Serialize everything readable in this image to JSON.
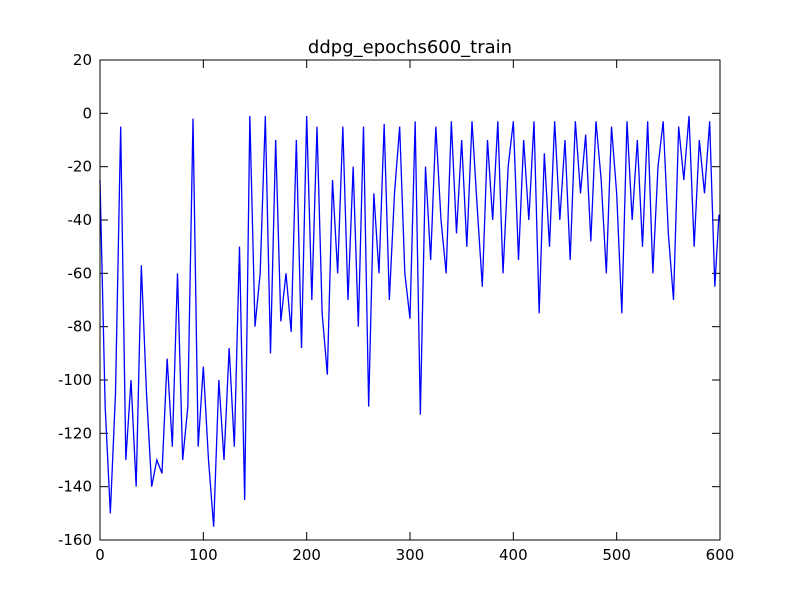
{
  "chart_data": {
    "type": "line",
    "title": "ddpg_epochs600_train",
    "x": [
      0,
      5,
      10,
      15,
      20,
      25,
      30,
      35,
      40,
      45,
      50,
      55,
      60,
      65,
      70,
      75,
      80,
      85,
      90,
      95,
      100,
      105,
      110,
      115,
      120,
      125,
      130,
      135,
      140,
      145,
      150,
      155,
      160,
      165,
      170,
      175,
      180,
      185,
      190,
      195,
      200,
      205,
      210,
      215,
      220,
      225,
      230,
      235,
      240,
      245,
      250,
      255,
      260,
      265,
      270,
      275,
      280,
      285,
      290,
      295,
      300,
      305,
      310,
      315,
      320,
      325,
      330,
      335,
      340,
      345,
      350,
      355,
      360,
      365,
      370,
      375,
      380,
      385,
      390,
      395,
      400,
      405,
      410,
      415,
      420,
      425,
      430,
      435,
      440,
      445,
      450,
      455,
      460,
      465,
      470,
      475,
      480,
      485,
      490,
      495,
      500,
      505,
      510,
      515,
      520,
      525,
      530,
      535,
      540,
      545,
      550,
      555,
      560,
      565,
      570,
      575,
      580,
      585,
      590,
      595,
      599
    ],
    "series": [
      {
        "color": "#0000ff",
        "values": [
          -25,
          -110,
          -150,
          -105,
          -5,
          -130,
          -100,
          -140,
          -57,
          -105,
          -140,
          -130,
          -135,
          -92,
          -125,
          -60,
          -130,
          -110,
          -2,
          -125,
          -95,
          -130,
          -155,
          -100,
          -130,
          -88,
          -125,
          -50,
          -145,
          -1,
          -80,
          -60,
          -1,
          -90,
          -10,
          -78,
          -60,
          -82,
          -10,
          -88,
          -1,
          -70,
          -5,
          -75,
          -98,
          -25,
          -60,
          -5,
          -70,
          -20,
          -80,
          -5,
          -110,
          -30,
          -60,
          -4,
          -70,
          -30,
          -5,
          -60,
          -77,
          -3,
          -113,
          -20,
          -55,
          -5,
          -40,
          -60,
          -3,
          -45,
          -10,
          -50,
          -3,
          -35,
          -65,
          -10,
          -40,
          -3,
          -60,
          -20,
          -3,
          -55,
          -10,
          -40,
          -3,
          -75,
          -15,
          -50,
          -3,
          -40,
          -10,
          -55,
          -3,
          -30,
          -8,
          -48,
          -3,
          -25,
          -60,
          -5,
          -30,
          -75,
          -3,
          -40,
          -10,
          -50,
          -3,
          -60,
          -20,
          -3,
          -45,
          -70,
          -5,
          -25,
          -1,
          -50,
          -10,
          -30,
          -3,
          -65,
          -38
        ]
      }
    ],
    "xlim": [
      0,
      600
    ],
    "xticks": [
      0,
      100,
      200,
      300,
      400,
      500,
      600
    ],
    "ylim": [
      -160,
      20
    ],
    "yticks": [
      -160,
      -140,
      -120,
      -100,
      -80,
      -60,
      -40,
      -20,
      0,
      20
    ]
  }
}
